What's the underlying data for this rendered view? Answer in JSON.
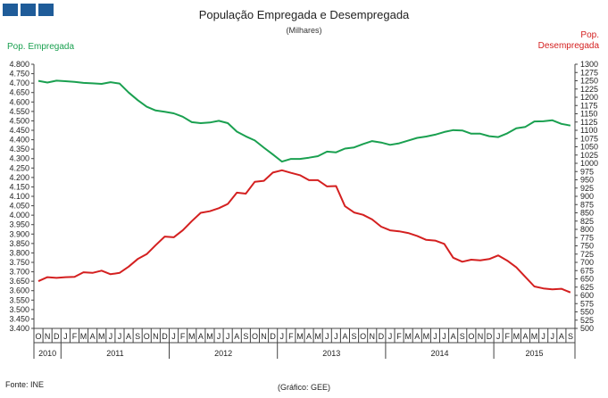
{
  "header": {
    "title": "População Empregada e Desempregada",
    "subtitle": "(Milhares)",
    "left_axis_label": "Pop. Empregada",
    "right_axis_label_line1": "Pop.",
    "right_axis_label_line2": "Desempregada",
    "source": "Fonte: INE",
    "credit": "(Gráfico: GEE)"
  },
  "chart_data": {
    "type": "line",
    "x_months": [
      "O",
      "N",
      "D",
      "J",
      "F",
      "M",
      "A",
      "M",
      "J",
      "J",
      "A",
      "S",
      "O",
      "N",
      "D",
      "J",
      "F",
      "M",
      "A",
      "M",
      "J",
      "J",
      "A",
      "S",
      "O",
      "N",
      "D",
      "J",
      "F",
      "M",
      "A",
      "M",
      "J",
      "J",
      "A",
      "S",
      "O",
      "N",
      "D",
      "J",
      "F",
      "M",
      "A",
      "M",
      "J",
      "J",
      "A",
      "S",
      "O",
      "N",
      "D",
      "J",
      "F",
      "M",
      "A",
      "M",
      "J",
      "J",
      "A",
      "S"
    ],
    "x_years": [
      {
        "label": "2010",
        "start": 0,
        "end": 2
      },
      {
        "label": "2011",
        "start": 3,
        "end": 14
      },
      {
        "label": "2012",
        "start": 15,
        "end": 26
      },
      {
        "label": "2013",
        "start": 27,
        "end": 38
      },
      {
        "label": "2014",
        "start": 39,
        "end": 50
      },
      {
        "label": "2015",
        "start": 51,
        "end": 59
      }
    ],
    "left_axis": {
      "ylim": [
        3400,
        4800
      ],
      "ticks": [
        "3.400",
        "3.450",
        "3.500",
        "3.550",
        "3.600",
        "3.650",
        "3.700",
        "3.750",
        "3.800",
        "3.850",
        "3.900",
        "3.950",
        "4.000",
        "4.050",
        "4.100",
        "4.150",
        "4.200",
        "4.250",
        "4.300",
        "4.350",
        "4.400",
        "4.450",
        "4.500",
        "4.550",
        "4.600",
        "4.650",
        "4.700",
        "4.750",
        "4.800"
      ]
    },
    "right_axis": {
      "ylim": [
        500,
        1300
      ],
      "ticks": [
        "500",
        "525",
        "550",
        "575",
        "600",
        "625",
        "650",
        "675",
        "700",
        "725",
        "750",
        "775",
        "800",
        "825",
        "850",
        "875",
        "900",
        "925",
        "950",
        "975",
        "1000",
        "1025",
        "1050",
        "1075",
        "1100",
        "1125",
        "1150",
        "1175",
        "1200",
        "1225",
        "1250",
        "1275",
        "1300"
      ]
    },
    "series": [
      {
        "name": "Pop. Empregada",
        "axis": "left",
        "color": "#1aa050",
        "values": [
          4712,
          4703,
          4713,
          4710,
          4707,
          4701,
          4699,
          4696,
          4705,
          4698,
          4650,
          4610,
          4575,
          4555,
          4548,
          4540,
          4522,
          4493,
          4488,
          4491,
          4500,
          4488,
          4443,
          4418,
          4396,
          4358,
          4322,
          4284,
          4298,
          4298,
          4305,
          4313,
          4337,
          4333,
          4353,
          4359,
          4377,
          4393,
          4385,
          4373,
          4381,
          4395,
          4410,
          4417,
          4427,
          4441,
          4451,
          4449,
          4432,
          4432,
          4419,
          4414,
          4434,
          4461,
          4468,
          4497,
          4498,
          4503,
          4484,
          4475
        ]
      },
      {
        "name": "Pop. Desempregada",
        "axis": "right",
        "color": "#d42020",
        "values": [
          643,
          655,
          653,
          655,
          656,
          670,
          668,
          675,
          664,
          668,
          687,
          710,
          725,
          752,
          778,
          776,
          797,
          825,
          850,
          855,
          864,
          877,
          911,
          908,
          944,
          947,
          972,
          979,
          971,
          964,
          949,
          949,
          930,
          931,
          870,
          851,
          844,
          830,
          808,
          797,
          794,
          789,
          780,
          768,
          766,
          756,
          714,
          702,
          708,
          706,
          710,
          721,
          705,
          685,
          656,
          627,
          621,
          618,
          620,
          609
        ]
      }
    ],
    "grid": false,
    "legend": "none"
  }
}
